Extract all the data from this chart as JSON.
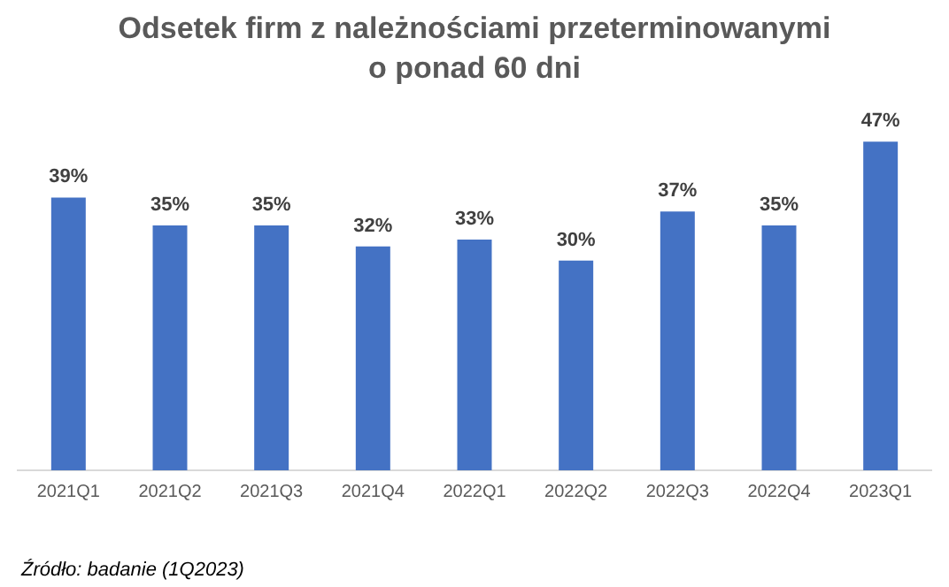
{
  "chart_data": {
    "type": "bar",
    "title": "Odsetek firm z należnościami przeterminowanymi\no ponad 60 dni",
    "categories": [
      "2021Q1",
      "2021Q2",
      "2021Q3",
      "2021Q4",
      "2022Q1",
      "2022Q2",
      "2022Q3",
      "2022Q4",
      "2023Q1"
    ],
    "values": [
      39,
      35,
      35,
      32,
      33,
      30,
      37,
      35,
      47
    ],
    "value_labels": [
      "39%",
      "35%",
      "35%",
      "32%",
      "33%",
      "30%",
      "37%",
      "35%",
      "47%"
    ],
    "color": "#4472c4",
    "annotations": [
      "Źródło: badanie (1Q2023)"
    ],
    "grid": false,
    "legend": false
  }
}
